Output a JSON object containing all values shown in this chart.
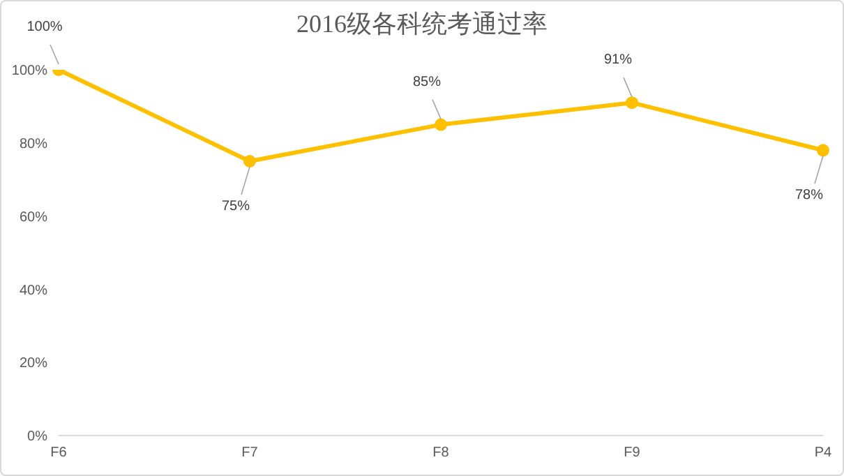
{
  "chart_data": {
    "type": "line",
    "title": "2016级各科统考通过率",
    "categories": [
      "F6",
      "F7",
      "F8",
      "F9",
      "P4"
    ],
    "series": [
      {
        "color": "#ffc000",
        "values": [
          100,
          75,
          85,
          91,
          78
        ],
        "value_labels": [
          "100%",
          "75%",
          "85%",
          "91%",
          "78%"
        ]
      }
    ],
    "ylim": [
      0,
      100
    ],
    "yticks": [
      {
        "value": 0,
        "label": "0%"
      },
      {
        "value": 20,
        "label": "20%"
      },
      {
        "value": 40,
        "label": "40%"
      },
      {
        "value": 60,
        "label": "60%"
      },
      {
        "value": 80,
        "label": "80%"
      },
      {
        "value": 100,
        "label": "100%"
      }
    ],
    "grid": false,
    "legend": false,
    "marker": "circle",
    "line_style": "solid"
  }
}
